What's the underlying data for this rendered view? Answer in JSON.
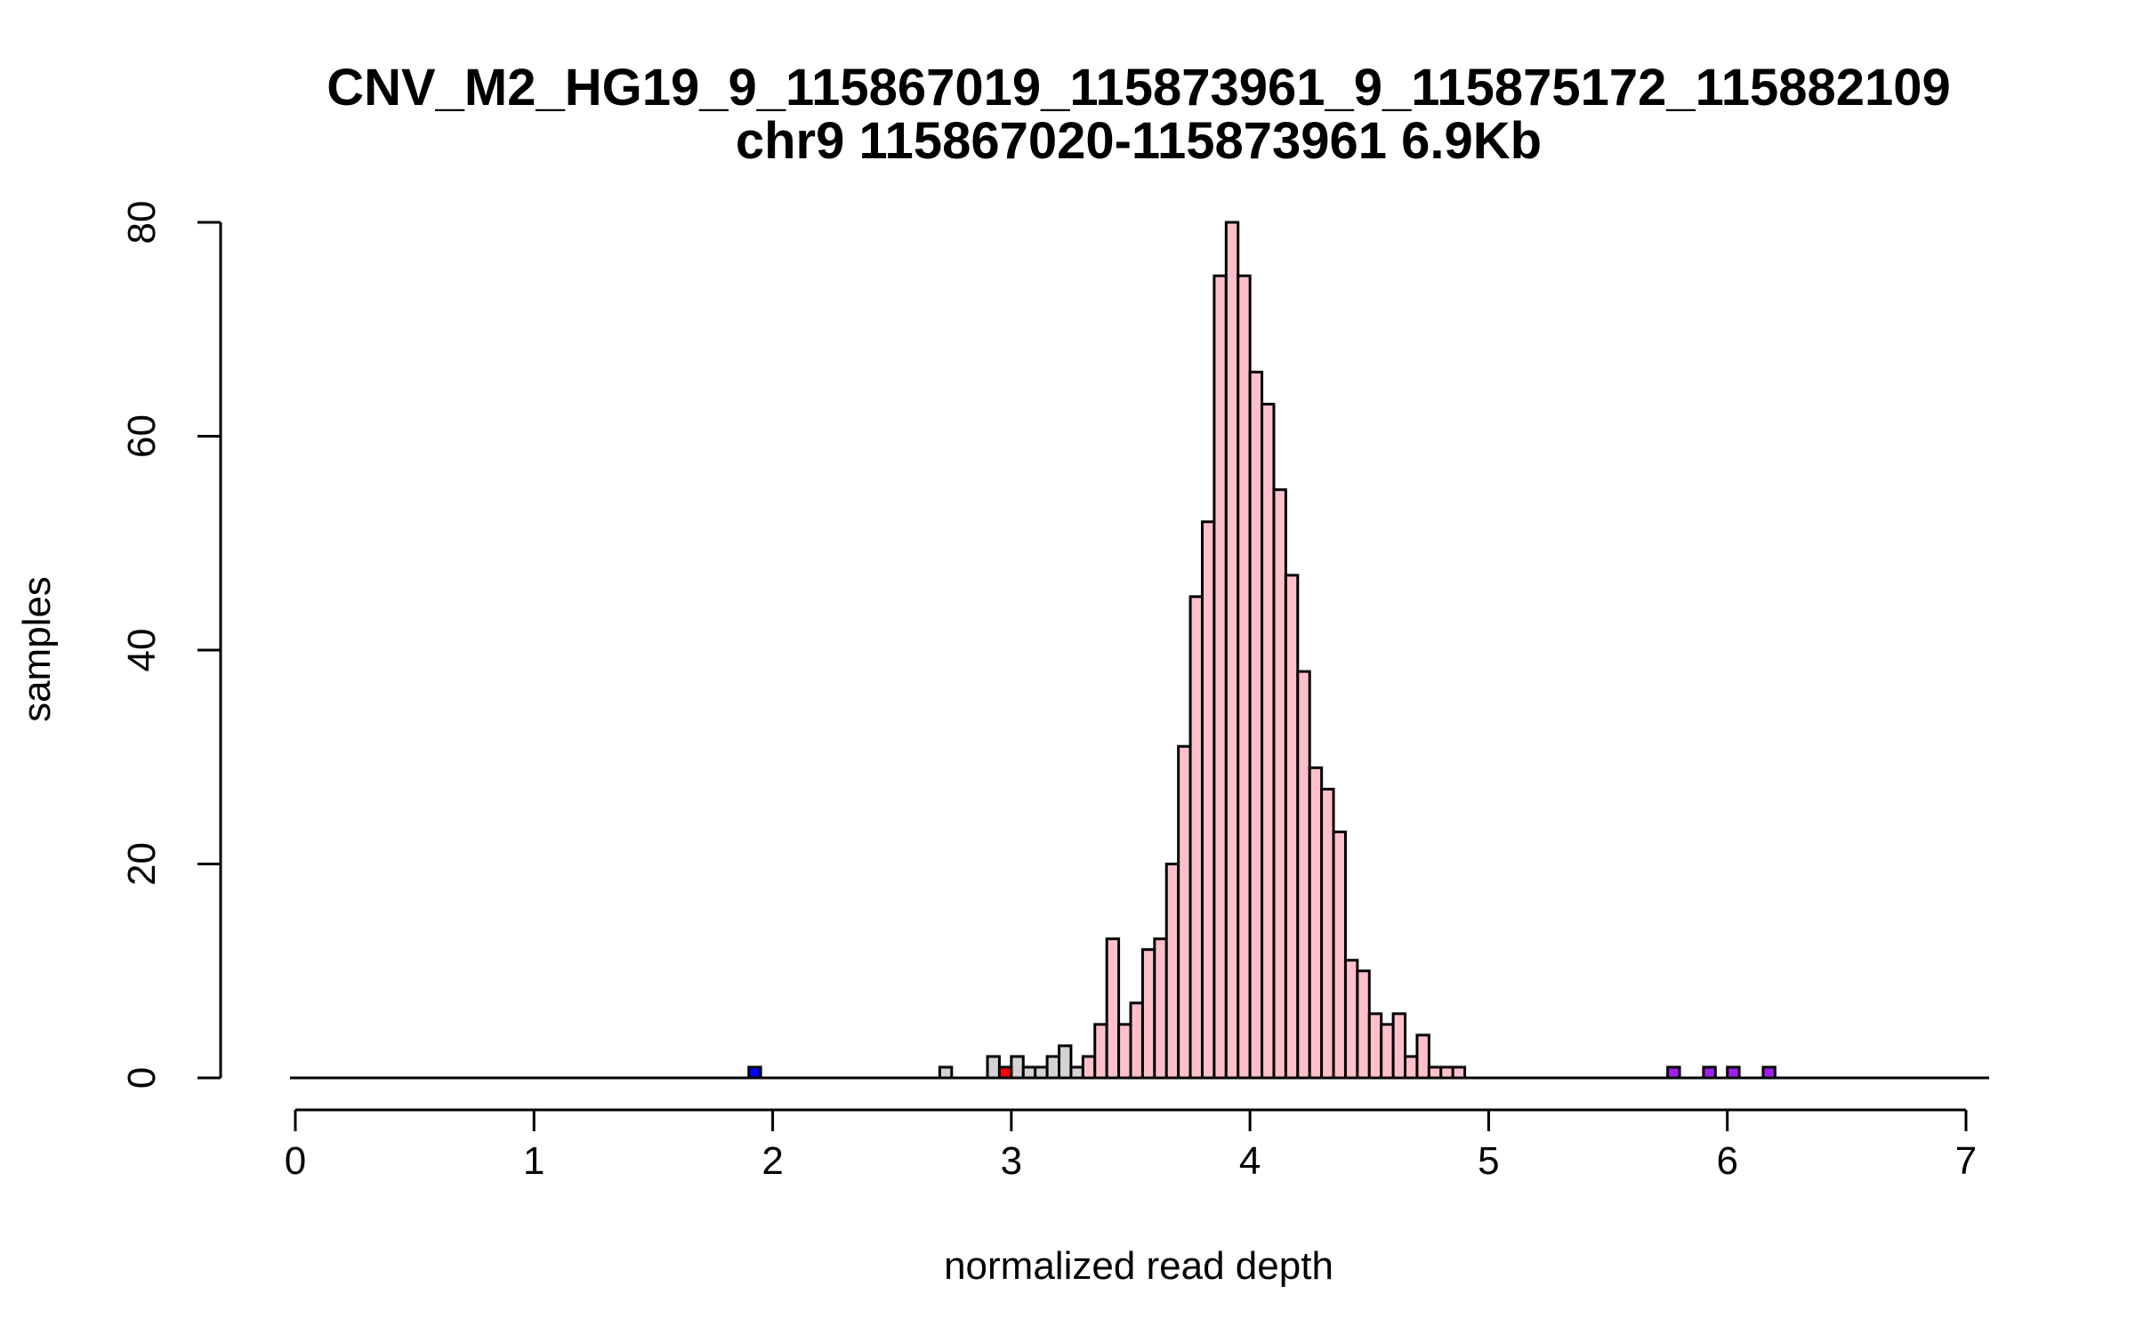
{
  "chart_data": {
    "type": "bar",
    "title": "CNV_M2_HG19_9_115867019_115873961_9_115875172_115882109",
    "subtitle": "chr9 115867020-115873961 6.9Kb",
    "xlabel": "normalized read depth",
    "ylabel": "samples",
    "xlim": [
      0,
      7
    ],
    "ylim": [
      0,
      80
    ],
    "bin_width": 0.05,
    "x_ticks": [
      0,
      1,
      2,
      3,
      4,
      5,
      6,
      7
    ],
    "y_ticks": [
      0,
      20,
      40,
      60,
      80
    ],
    "colors": {
      "main": "#ffc0cb",
      "other": "#d3d3d3",
      "low": "#0000ff",
      "mid_low": "#ff0000",
      "high": "#a020f0",
      "stroke": "#000000"
    },
    "series": [
      {
        "name": "grey",
        "color_key": "other",
        "bins": [
          {
            "x0": 2.7,
            "count": 1
          },
          {
            "x0": 2.9,
            "count": 2
          },
          {
            "x0": 2.95,
            "count": 1
          },
          {
            "x0": 3.0,
            "count": 2
          },
          {
            "x0": 3.05,
            "count": 1
          },
          {
            "x0": 3.1,
            "count": 1
          },
          {
            "x0": 3.15,
            "count": 2
          },
          {
            "x0": 3.2,
            "count": 3
          },
          {
            "x0": 3.25,
            "count": 1
          }
        ]
      },
      {
        "name": "pink",
        "color_key": "main",
        "bins": [
          {
            "x0": 3.3,
            "count": 2
          },
          {
            "x0": 3.35,
            "count": 5
          },
          {
            "x0": 3.4,
            "count": 13
          },
          {
            "x0": 3.45,
            "count": 5
          },
          {
            "x0": 3.5,
            "count": 7
          },
          {
            "x0": 3.55,
            "count": 12
          },
          {
            "x0": 3.6,
            "count": 13
          },
          {
            "x0": 3.65,
            "count": 20
          },
          {
            "x0": 3.7,
            "count": 31
          },
          {
            "x0": 3.75,
            "count": 45
          },
          {
            "x0": 3.8,
            "count": 52
          },
          {
            "x0": 3.85,
            "count": 75
          },
          {
            "x0": 3.9,
            "count": 80
          },
          {
            "x0": 3.95,
            "count": 75
          },
          {
            "x0": 4.0,
            "count": 66
          },
          {
            "x0": 4.05,
            "count": 63
          },
          {
            "x0": 4.1,
            "count": 55
          },
          {
            "x0": 4.15,
            "count": 47
          },
          {
            "x0": 4.2,
            "count": 38
          },
          {
            "x0": 4.25,
            "count": 29
          },
          {
            "x0": 4.3,
            "count": 27
          },
          {
            "x0": 4.35,
            "count": 23
          },
          {
            "x0": 4.4,
            "count": 11
          },
          {
            "x0": 4.45,
            "count": 10
          },
          {
            "x0": 4.5,
            "count": 6
          },
          {
            "x0": 4.55,
            "count": 5
          },
          {
            "x0": 4.6,
            "count": 6
          },
          {
            "x0": 4.65,
            "count": 2
          },
          {
            "x0": 4.7,
            "count": 4
          },
          {
            "x0": 4.75,
            "count": 1
          },
          {
            "x0": 4.8,
            "count": 1
          },
          {
            "x0": 4.85,
            "count": 1
          }
        ]
      },
      {
        "name": "blue",
        "color_key": "low",
        "bins": [
          {
            "x0": 1.9,
            "count": 1
          }
        ]
      },
      {
        "name": "red",
        "color_key": "mid_low",
        "bins": [
          {
            "x0": 2.95,
            "count": 1
          }
        ]
      },
      {
        "name": "purple",
        "color_key": "high",
        "bins": [
          {
            "x0": 5.75,
            "count": 1
          },
          {
            "x0": 5.9,
            "count": 1
          },
          {
            "x0": 6.0,
            "count": 1
          },
          {
            "x0": 6.15,
            "count": 1
          }
        ]
      }
    ]
  }
}
